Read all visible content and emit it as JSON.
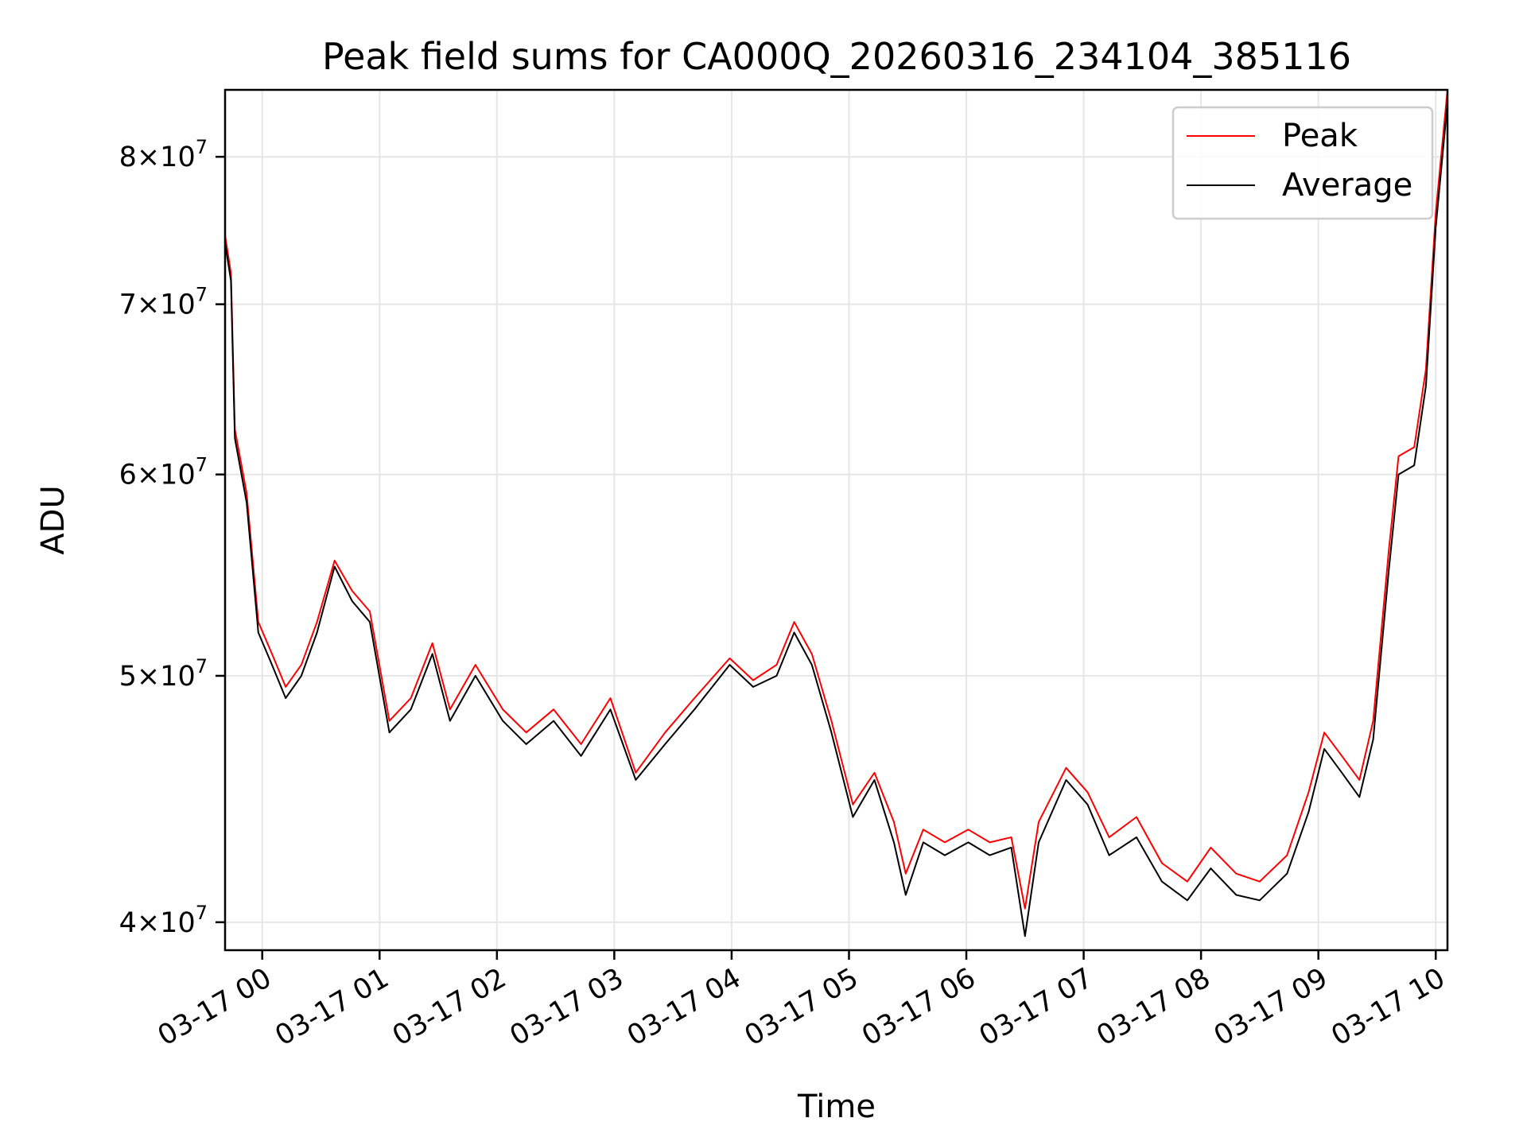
{
  "chart_data": {
    "type": "line",
    "title": "Peak field sums for CA000Q_20260316_234104_385116",
    "xlabel": "Time",
    "ylabel": "ADU",
    "x_range": [
      "2026-03-16 23:41",
      "2026-03-17 10:06"
    ],
    "y_scale": "log",
    "ylim": [
      39000000,
      85000000
    ],
    "grid": true,
    "legend_position": "upper right",
    "x_ticks": [
      "03-17 00",
      "03-17 01",
      "03-17 02",
      "03-17 03",
      "03-17 04",
      "03-17 05",
      "03-17 06",
      "03-17 07",
      "03-17 08",
      "03-17 09",
      "03-17 10"
    ],
    "y_ticks": [
      {
        "value": 40000000,
        "mantissa": "4",
        "base": "10",
        "exponent": "7"
      },
      {
        "value": 50000000,
        "mantissa": "5",
        "base": "10",
        "exponent": "7"
      },
      {
        "value": 60000000,
        "mantissa": "6",
        "base": "10",
        "exponent": "7"
      },
      {
        "value": 70000000,
        "mantissa": "7",
        "base": "10",
        "exponent": "7"
      },
      {
        "value": 80000000,
        "mantissa": "8",
        "base": "10",
        "exponent": "7"
      }
    ],
    "series": [
      {
        "name": "Peak",
        "color": "#ff0000",
        "x": [
          "2026-03-16 23:41",
          "2026-03-16 23:44",
          "2026-03-16 23:46",
          "2026-03-16 23:52",
          "2026-03-16 23:58",
          "2026-03-17 00:05",
          "2026-03-17 00:12",
          "2026-03-17 00:20",
          "2026-03-17 00:28",
          "2026-03-17 00:37",
          "2026-03-17 00:46",
          "2026-03-17 00:55",
          "2026-03-17 01:05",
          "2026-03-17 01:16",
          "2026-03-17 01:27",
          "2026-03-17 01:36",
          "2026-03-17 01:49",
          "2026-03-17 02:03",
          "2026-03-17 02:15",
          "2026-03-17 02:29",
          "2026-03-17 02:43",
          "2026-03-17 02:58",
          "2026-03-17 03:11",
          "2026-03-17 03:26",
          "2026-03-17 03:41",
          "2026-03-17 03:59",
          "2026-03-17 04:11",
          "2026-03-17 04:23",
          "2026-03-17 04:32",
          "2026-03-17 04:41",
          "2026-03-17 04:51",
          "2026-03-17 05:02",
          "2026-03-17 05:13",
          "2026-03-17 05:23",
          "2026-03-17 05:29",
          "2026-03-17 05:38",
          "2026-03-17 05:49",
          "2026-03-17 06:01",
          "2026-03-17 06:12",
          "2026-03-17 06:23",
          "2026-03-17 06:30",
          "2026-03-17 06:37",
          "2026-03-17 06:51",
          "2026-03-17 07:02",
          "2026-03-17 07:13",
          "2026-03-17 07:27",
          "2026-03-17 07:40",
          "2026-03-17 07:53",
          "2026-03-17 08:05",
          "2026-03-17 08:18",
          "2026-03-17 08:30",
          "2026-03-17 08:44",
          "2026-03-17 08:55",
          "2026-03-17 09:03",
          "2026-03-17 09:12",
          "2026-03-17 09:21",
          "2026-03-17 09:28",
          "2026-03-17 09:36",
          "2026-03-17 09:41",
          "2026-03-17 09:49",
          "2026-03-17 09:55",
          "2026-03-17 10:00",
          "2026-03-17 10:06"
        ],
        "y": [
          74500000,
          72000000,
          62500000,
          59000000,
          52500000,
          51000000,
          49500000,
          50500000,
          52500000,
          55500000,
          54000000,
          53000000,
          48000000,
          49000000,
          51500000,
          48500000,
          50500000,
          48500000,
          47500000,
          48500000,
          47000000,
          49000000,
          45800000,
          47500000,
          49000000,
          50800000,
          49800000,
          50500000,
          52500000,
          51000000,
          48000000,
          44500000,
          45800000,
          43800000,
          41800000,
          43500000,
          43000000,
          43500000,
          43000000,
          43200000,
          40500000,
          43800000,
          46000000,
          45000000,
          43200000,
          44000000,
          42200000,
          41500000,
          42800000,
          41800000,
          41500000,
          42500000,
          45000000,
          47500000,
          46500000,
          45500000,
          48000000,
          56000000,
          61000000,
          61500000,
          66000000,
          76000000,
          85000000
        ]
      },
      {
        "name": "Average",
        "color": "#000000",
        "x": [
          "2026-03-16 23:41",
          "2026-03-16 23:44",
          "2026-03-16 23:46",
          "2026-03-16 23:52",
          "2026-03-16 23:58",
          "2026-03-17 00:05",
          "2026-03-17 00:12",
          "2026-03-17 00:20",
          "2026-03-17 00:28",
          "2026-03-17 00:37",
          "2026-03-17 00:46",
          "2026-03-17 00:55",
          "2026-03-17 01:05",
          "2026-03-17 01:16",
          "2026-03-17 01:27",
          "2026-03-17 01:36",
          "2026-03-17 01:49",
          "2026-03-17 02:03",
          "2026-03-17 02:15",
          "2026-03-17 02:29",
          "2026-03-17 02:43",
          "2026-03-17 02:58",
          "2026-03-17 03:11",
          "2026-03-17 03:26",
          "2026-03-17 03:41",
          "2026-03-17 03:59",
          "2026-03-17 04:11",
          "2026-03-17 04:23",
          "2026-03-17 04:32",
          "2026-03-17 04:41",
          "2026-03-17 04:51",
          "2026-03-17 05:02",
          "2026-03-17 05:13",
          "2026-03-17 05:23",
          "2026-03-17 05:29",
          "2026-03-17 05:38",
          "2026-03-17 05:49",
          "2026-03-17 06:01",
          "2026-03-17 06:12",
          "2026-03-17 06:23",
          "2026-03-17 06:30",
          "2026-03-17 06:37",
          "2026-03-17 06:51",
          "2026-03-17 07:02",
          "2026-03-17 07:13",
          "2026-03-17 07:27",
          "2026-03-17 07:40",
          "2026-03-17 07:53",
          "2026-03-17 08:05",
          "2026-03-17 08:18",
          "2026-03-17 08:30",
          "2026-03-17 08:44",
          "2026-03-17 08:55",
          "2026-03-17 09:03",
          "2026-03-17 09:12",
          "2026-03-17 09:21",
          "2026-03-17 09:28",
          "2026-03-17 09:36",
          "2026-03-17 09:41",
          "2026-03-17 09:49",
          "2026-03-17 09:55",
          "2026-03-17 10:00",
          "2026-03-17 10:06"
        ],
        "y": [
          74000000,
          71500000,
          62000000,
          58500000,
          52000000,
          50500000,
          49000000,
          50000000,
          52000000,
          55200000,
          53500000,
          52500000,
          47500000,
          48500000,
          51000000,
          48000000,
          50000000,
          48000000,
          47000000,
          48000000,
          46500000,
          48500000,
          45500000,
          47000000,
          48500000,
          50500000,
          49500000,
          50000000,
          52000000,
          50500000,
          47500000,
          44000000,
          45500000,
          43000000,
          41000000,
          43000000,
          42500000,
          43000000,
          42500000,
          42800000,
          39500000,
          43000000,
          45500000,
          44500000,
          42500000,
          43200000,
          41500000,
          40800000,
          42000000,
          41000000,
          40800000,
          41800000,
          44200000,
          46800000,
          45800000,
          44800000,
          47200000,
          55000000,
          60000000,
          60500000,
          65000000,
          75000000,
          84000000
        ]
      }
    ]
  }
}
